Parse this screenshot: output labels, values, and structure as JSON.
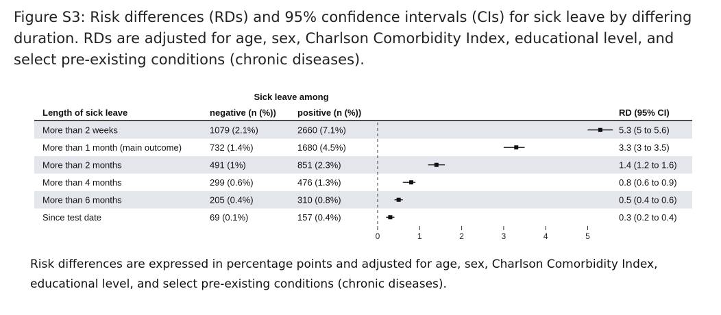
{
  "figure": {
    "caption": "Figure S3: Risk differences (RDs) and 95% confidence intervals (CIs) for sick leave by differing duration. RDs are adjusted for age, sex, Charlson Comorbidity Index, educational level, and select pre-existing conditions (chronic diseases).",
    "footnote": "Risk differences are expressed in percentage points and adjusted for age, sex, Charlson Comorbidity Index, educational level, and select pre-existing conditions (chronic diseases)."
  },
  "table": {
    "group_header": "Sick leave among",
    "col_length": "Length of sick leave",
    "col_negative": "negative (n (%))",
    "col_positive": "positive (n (%))",
    "col_rd": "RD (95% CI)"
  },
  "chart_data": {
    "type": "forest",
    "xlim": [
      0,
      5.6
    ],
    "xticks": [
      "0",
      "1",
      "2",
      "3",
      "4",
      "5"
    ],
    "reference_line": 0,
    "rows": [
      {
        "label": "More than 2 weeks",
        "negative": "1079 (2.1%)",
        "positive": "2660 (7.1%)",
        "rd_text": "5.3 (5 to 5.6)",
        "rd": 5.3,
        "lo": 5.0,
        "hi": 5.6
      },
      {
        "label": "More than 1 month (main outcome)",
        "negative": "732 (1.4%)",
        "positive": "1680 (4.5%)",
        "rd_text": "3.3 (3 to 3.5)",
        "rd": 3.3,
        "lo": 3.0,
        "hi": 3.5
      },
      {
        "label": "More than 2 months",
        "negative": "491 (1%)",
        "positive": "851 (2.3%)",
        "rd_text": "1.4 (1.2 to 1.6)",
        "rd": 1.4,
        "lo": 1.2,
        "hi": 1.6
      },
      {
        "label": "More than 4 months",
        "negative": "299 (0.6%)",
        "positive": "476 (1.3%)",
        "rd_text": "0.8 (0.6 to 0.9)",
        "rd": 0.8,
        "lo": 0.6,
        "hi": 0.9
      },
      {
        "label": "More than 6 months",
        "negative": "205 (0.4%)",
        "positive": "310 (0.8%)",
        "rd_text": "0.5 (0.4 to 0.6)",
        "rd": 0.5,
        "lo": 0.4,
        "hi": 0.6
      },
      {
        "label": "Since test date",
        "negative": "69 (0.1%)",
        "positive": "157 (0.4%)",
        "rd_text": "0.3 (0.2 to 0.4)",
        "rd": 0.3,
        "lo": 0.2,
        "hi": 0.4
      }
    ],
    "colors": {
      "stripe": "#e3e6eb",
      "ink": "#111111"
    }
  }
}
